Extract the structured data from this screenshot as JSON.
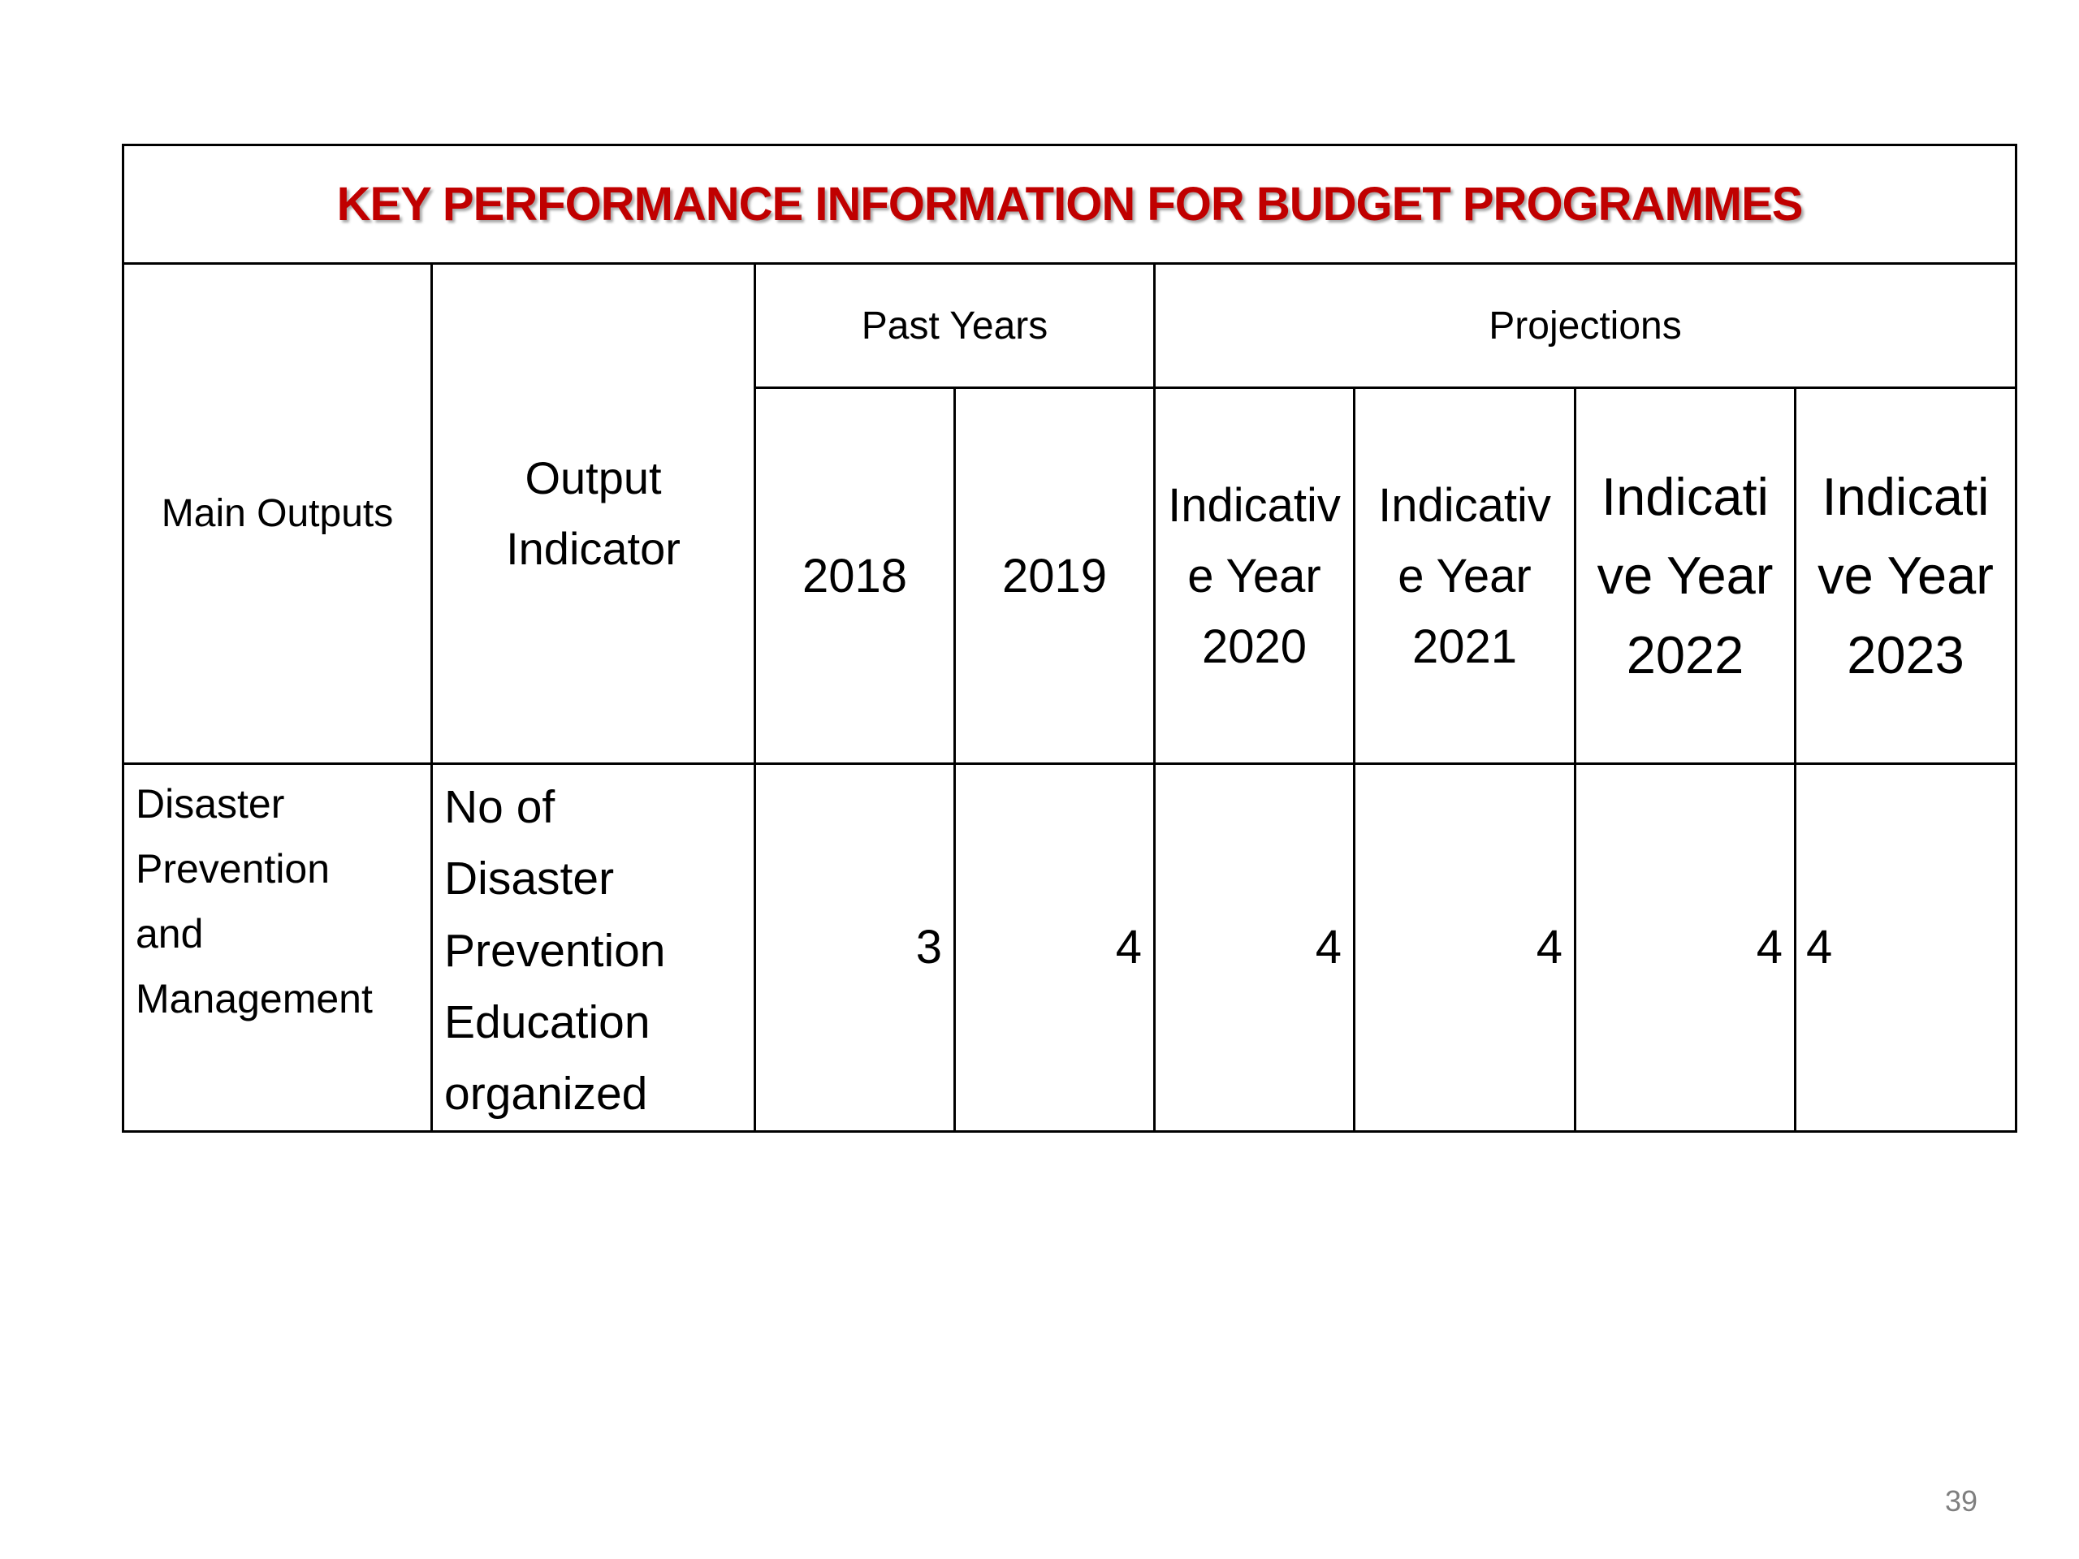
{
  "title": "KEY PERFORMANCE INFORMATION FOR BUDGET PROGRAMMES",
  "title_color": "#c00000",
  "headers": {
    "main_outputs": "Main Outputs",
    "output_indicator": "Output\nIndicator",
    "past_years": "Past Years",
    "projections": "Projections",
    "years": [
      "2018",
      "2019",
      "Indicativ\ne Year\n2020",
      "Indicativ\ne Year\n2021",
      "Indicati\nve Year\n2022",
      "Indicati\nve Year\n2023"
    ]
  },
  "rows": [
    {
      "main_output": "Disaster\nPrevention\nand\nManagement",
      "indicator": "No of\nDisaster\nPrevention\nEducation\norganized",
      "values": [
        "3",
        "4",
        "4",
        "4",
        "4",
        "4"
      ]
    }
  ],
  "page_number": "39"
}
